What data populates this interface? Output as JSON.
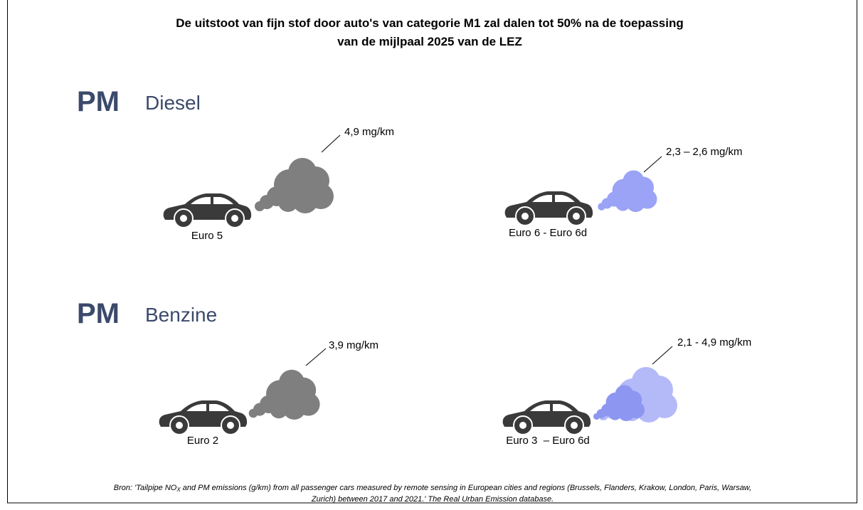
{
  "title_lines": [
    "De uitstoot van fijn stof door auto's van categorie M1 zal dalen tot 50% na de toepassing",
    "van de mijlpaal 2025 van de LEZ"
  ],
  "sections": [
    {
      "heading": "PM",
      "subheading": "Diesel",
      "items": [
        {
          "label": "Euro 5",
          "emission": "4,9 mg/km"
        },
        {
          "label": "Euro 6 - Euro 6d",
          "emission": "2,3 – 2,6 mg/km"
        }
      ]
    },
    {
      "heading": "PM",
      "subheading": "Benzine",
      "items": [
        {
          "label": "Euro 2",
          "emission": "3,9 mg/km"
        },
        {
          "label": "Euro 3  – Euro 6d",
          "emission": "2,1 - 4,9 mg/km"
        }
      ]
    }
  ],
  "source": {
    "before": "Bron: 'Tailpipe NO",
    "sub": "X",
    "after": " and PM emissions (g/km) from all passenger cars measured by remote sensing in European cities and regions (Brussels, Flanders, Krakow, London, Paris, Warsaw,",
    "line2": "Zurich) between 2017 and 2021.' The Real Urban Emission database."
  }
}
